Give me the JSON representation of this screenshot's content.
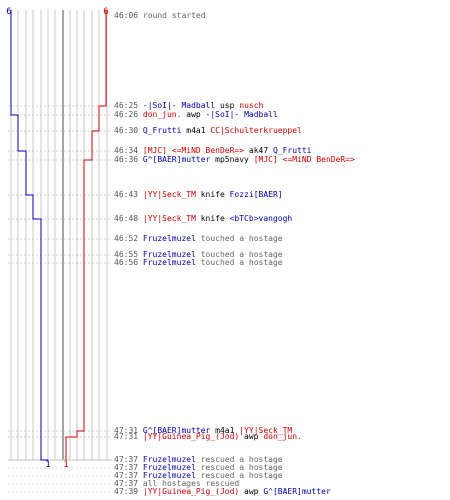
{
  "scoreboard": {
    "blue_start": "6",
    "red_start": "6",
    "blue_end": "1",
    "red_end": "1"
  },
  "colors": {
    "blue_team": "#0000a8",
    "red_team": "#cc0000",
    "grid": "#bbbbbb",
    "time": "#555555",
    "neutral": "#666666"
  },
  "events": [
    {
      "time": "46:06",
      "parts": [
        {
          "text": "round started",
          "team": "neutral"
        }
      ]
    },
    {
      "time": "46:25",
      "parts": [
        {
          "text": "-|SoI|- Madball",
          "team": "blue"
        },
        {
          "text": " usp ",
          "team": "weapon"
        },
        {
          "text": "nusch",
          "team": "red"
        }
      ]
    },
    {
      "time": "46:26",
      "parts": [
        {
          "text": "don_jun.",
          "team": "red"
        },
        {
          "text": " awp ",
          "team": "weapon"
        },
        {
          "text": "-|SoI|- Madball",
          "team": "blue"
        }
      ]
    },
    {
      "time": "46:30",
      "parts": [
        {
          "text": "Q_Frutti",
          "team": "blue"
        },
        {
          "text": " m4a1 ",
          "team": "weapon"
        },
        {
          "text": "CC|Schulterkrueppel",
          "team": "red"
        }
      ]
    },
    {
      "time": "46:34",
      "parts": [
        {
          "text": "[MJC] <=MiND BenDeR=>",
          "team": "red"
        },
        {
          "text": " ak47 ",
          "team": "weapon"
        },
        {
          "text": "Q_Frutti",
          "team": "blue"
        }
      ]
    },
    {
      "time": "46:36",
      "parts": [
        {
          "text": "G^[BAER]mutter",
          "team": "blue"
        },
        {
          "text": " mp5navy ",
          "team": "weapon"
        },
        {
          "text": "[MJC] <=MiND BenDeR=>",
          "team": "red"
        }
      ]
    },
    {
      "time": "46:43",
      "parts": [
        {
          "text": "|YY|Seck_TM",
          "team": "red"
        },
        {
          "text": " knife ",
          "team": "weapon"
        },
        {
          "text": "Fozzi[BAER]",
          "team": "blue"
        }
      ]
    },
    {
      "time": "46:48",
      "parts": [
        {
          "text": "|YY|Seck_TM",
          "team": "red"
        },
        {
          "text": " knife ",
          "team": "weapon"
        },
        {
          "text": "<bTCb>vangogh",
          "team": "blue"
        }
      ]
    },
    {
      "time": "46:52",
      "parts": [
        {
          "text": "Fruzelmuzel",
          "team": "blue"
        },
        {
          "text": " touched a hostage",
          "team": "neutral"
        }
      ]
    },
    {
      "time": "46:55",
      "parts": [
        {
          "text": "Fruzelmuzel",
          "team": "blue"
        },
        {
          "text": " touched a hostage",
          "team": "neutral"
        }
      ]
    },
    {
      "time": "46:56",
      "parts": [
        {
          "text": "Fruzelmuzel",
          "team": "blue"
        },
        {
          "text": " touched a hostage",
          "team": "neutral"
        }
      ]
    },
    {
      "time": "47:31",
      "parts": [
        {
          "text": "G^[BAER]mutter",
          "team": "blue"
        },
        {
          "text": " m4a1 ",
          "team": "weapon"
        },
        {
          "text": "|YY|Seck_TM",
          "team": "red"
        }
      ]
    },
    {
      "time": "47:31",
      "parts": [
        {
          "text": "|YY|Guinea_Pig_(Jod)",
          "team": "red"
        },
        {
          "text": " awp ",
          "team": "weapon"
        },
        {
          "text": "don_jun.",
          "team": "red"
        }
      ]
    },
    {
      "time": "47:37",
      "parts": [
        {
          "text": "Fruzelmuzel",
          "team": "blue"
        },
        {
          "text": " rescued a hostage",
          "team": "neutral"
        }
      ]
    },
    {
      "time": "47:37",
      "parts": [
        {
          "text": "Fruzelmuzel",
          "team": "blue"
        },
        {
          "text": " rescued a hostage",
          "team": "neutral"
        }
      ]
    },
    {
      "time": "47:37",
      "parts": [
        {
          "text": "Fruzelmuzel",
          "team": "blue"
        },
        {
          "text": " rescued a hostage",
          "team": "neutral"
        }
      ]
    },
    {
      "time": "47:37",
      "parts": [
        {
          "text": "all hostages rescued",
          "team": "neutral"
        }
      ]
    },
    {
      "time": "47:39",
      "parts": [
        {
          "text": "|YY|Guinea_Pig_(Jod)",
          "team": "red"
        },
        {
          "text": " awp ",
          "team": "weapon"
        },
        {
          "text": "G^[BAER]mutter",
          "team": "blue"
        }
      ]
    }
  ]
}
